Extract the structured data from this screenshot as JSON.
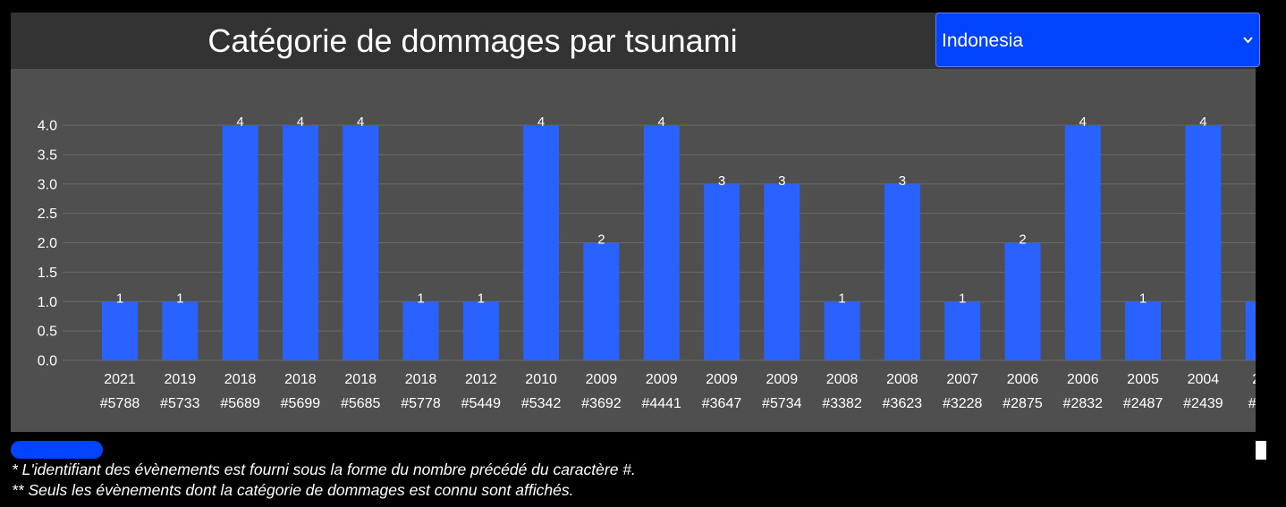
{
  "header": {
    "title": "Catégorie de dommages par tsunami"
  },
  "country_select": {
    "value": "Indonesia"
  },
  "notes": {
    "note1": "* L'identifiant des évènements est fourni sous la forme du nombre précédé du caractère #.",
    "note2": "** Seuls les évènements dont la catégorie de dommages est connu sont affichés."
  },
  "colors": {
    "bar": "#2962ff",
    "panel": "#4f4f4f",
    "header": "#333333",
    "select": "#0044ff",
    "grid": "#6a6a6a",
    "text": "#ffffff"
  },
  "chart_data": {
    "type": "bar",
    "title": "",
    "xlabel": "",
    "ylabel": "",
    "ylim": [
      0,
      4
    ],
    "yticks": [
      "0.0",
      "0.5",
      "1.0",
      "1.5",
      "2.0",
      "2.5",
      "3.0",
      "3.5",
      "4.0"
    ],
    "grid": true,
    "categories": [
      {
        "year": "2021",
        "id": "#5788"
      },
      {
        "year": "2019",
        "id": "#5733"
      },
      {
        "year": "2018",
        "id": "#5689"
      },
      {
        "year": "2018",
        "id": "#5699"
      },
      {
        "year": "2018",
        "id": "#5685"
      },
      {
        "year": "2018",
        "id": "#5778"
      },
      {
        "year": "2012",
        "id": "#5449"
      },
      {
        "year": "2010",
        "id": "#5342"
      },
      {
        "year": "2009",
        "id": "#3692"
      },
      {
        "year": "2009",
        "id": "#4441"
      },
      {
        "year": "2009",
        "id": "#3647"
      },
      {
        "year": "2009",
        "id": "#5734"
      },
      {
        "year": "2008",
        "id": "#3382"
      },
      {
        "year": "2008",
        "id": "#3623"
      },
      {
        "year": "2007",
        "id": "#3228"
      },
      {
        "year": "2006",
        "id": "#2875"
      },
      {
        "year": "2006",
        "id": "#2832"
      },
      {
        "year": "2005",
        "id": "#2487"
      },
      {
        "year": "2004",
        "id": "#2439"
      },
      {
        "year": "2…",
        "id": "#3…"
      }
    ],
    "values": [
      1,
      1,
      4,
      4,
      4,
      1,
      1,
      4,
      2,
      4,
      3,
      3,
      1,
      3,
      1,
      2,
      4,
      1,
      4,
      1
    ]
  }
}
